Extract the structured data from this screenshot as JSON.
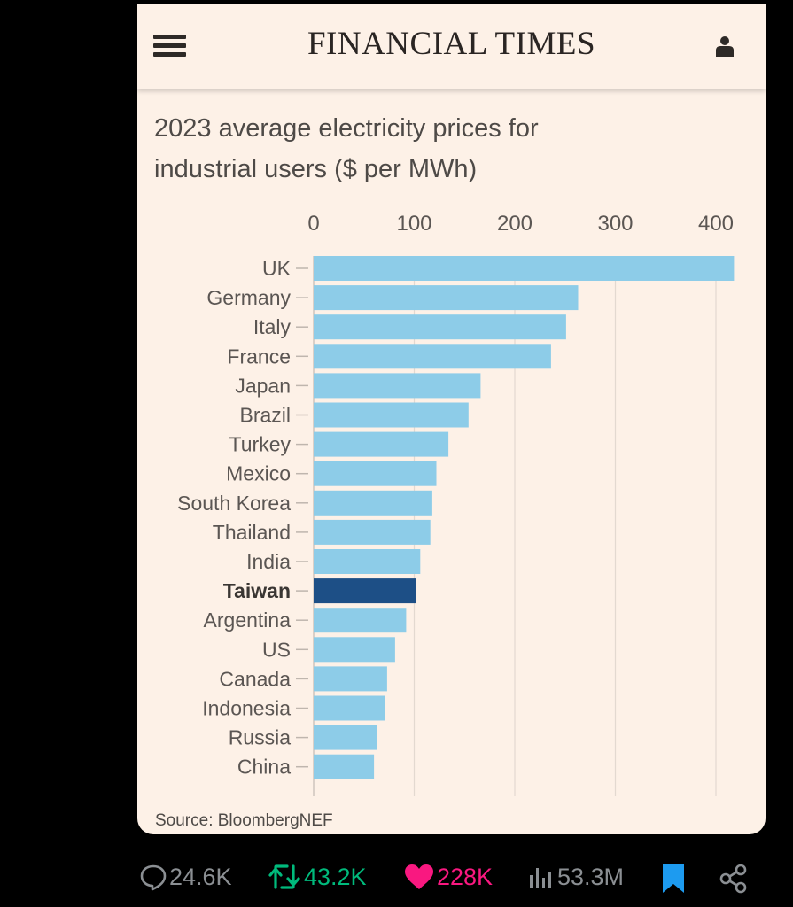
{
  "header": {
    "brand": "FINANCIAL TIMES",
    "menu_icon": "hamburger-menu-icon",
    "user_icon": "user-account-icon"
  },
  "chart_data": {
    "type": "bar",
    "orientation": "horizontal",
    "title": "2023 average electricity prices for industrial users ($ per MWh)",
    "title_lines": [
      "2023 average electricity prices for",
      "industrial users ($ per MWh)"
    ],
    "xlabel": "",
    "ylabel": "",
    "xlim": [
      0,
      420
    ],
    "x_ticks": [
      0,
      100,
      200,
      300,
      400
    ],
    "x_tick_labels": [
      "0",
      "100",
      "200",
      "300",
      "400"
    ],
    "grid": true,
    "categories": [
      "UK",
      "Germany",
      "Italy",
      "France",
      "Japan",
      "Brazil",
      "Turkey",
      "Mexico",
      "South Korea",
      "Thailand",
      "India",
      "Taiwan",
      "Argentina",
      "US",
      "Canada",
      "Indonesia",
      "Russia",
      "China"
    ],
    "values": [
      418,
      263,
      251,
      236,
      166,
      154,
      134,
      122,
      118,
      116,
      106,
      102,
      92,
      81,
      73,
      71,
      63,
      60
    ],
    "highlight": "Taiwan",
    "colors": {
      "default": "#8dcce8",
      "highlight": "#1d4f86"
    },
    "source": "Source: BloombergNEF"
  },
  "engagement": {
    "replies": "24.6K",
    "reposts": "43.2K",
    "likes": "228K",
    "views": "53.3M",
    "colors": {
      "replies": "#8b8f93",
      "reposts": "#00ba7c",
      "likes": "#f91880",
      "views": "#8b8f93",
      "bookmark": "#1d9bf0",
      "share": "#8b8f93"
    }
  }
}
